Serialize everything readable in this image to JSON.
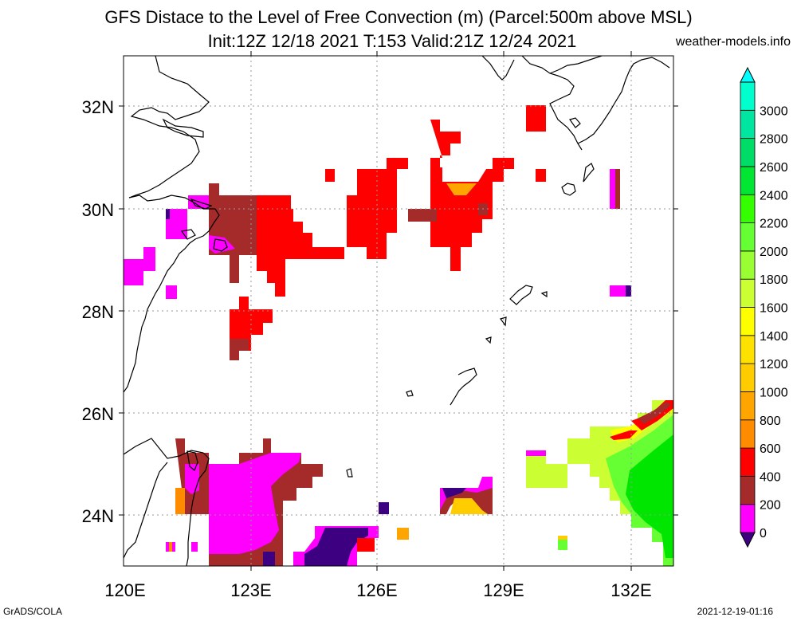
{
  "title": {
    "line1": "GFS Distace to the Level of Free Convection (m) (Parcel:500m above MSL)",
    "line2": "Init:12Z 12/18 2021 T:153 Valid:21Z 12/24 2021"
  },
  "source": "weather-models.info",
  "footer": {
    "left": "GrADS/COLA",
    "right": "2021-12-19-01:16"
  },
  "axes": {
    "x_ticks": [
      "120E",
      "123E",
      "126E",
      "129E",
      "132E"
    ],
    "y_ticks": [
      "24N",
      "26N",
      "28N",
      "30N",
      "32N"
    ]
  },
  "colorbar": {
    "levels": [
      "0",
      "200",
      "400",
      "600",
      "800",
      "1000",
      "1200",
      "1400",
      "1600",
      "1800",
      "2000",
      "2200",
      "2400",
      "2600",
      "2800",
      "3000"
    ],
    "colors": [
      "#3c0080",
      "#ff00ff",
      "#a52a2a",
      "#ff0000",
      "#ff8c00",
      "#ffa500",
      "#ffcc00",
      "#ffe100",
      "#ffff00",
      "#ccff33",
      "#99ff33",
      "#66ff33",
      "#33ff00",
      "#00e632",
      "#00dd66",
      "#00e6a0",
      "#00ffcc",
      "#00ffff"
    ]
  },
  "chart_data": {
    "type": "heatmap",
    "xlim": [
      120,
      133
    ],
    "ylim": [
      23,
      33
    ],
    "colors": {
      "lt0": "#3c0080",
      "0-200": "#ff00ff",
      "200-400": "#a52a2a",
      "400-600": "#ff0000",
      "600-800": "#ff8c00",
      "1000-1200": "#ffcc00",
      "1600-1800": "#ccff33",
      "2000-2200": "#66ff33",
      "2400-2600": "#00ff00"
    }
  }
}
